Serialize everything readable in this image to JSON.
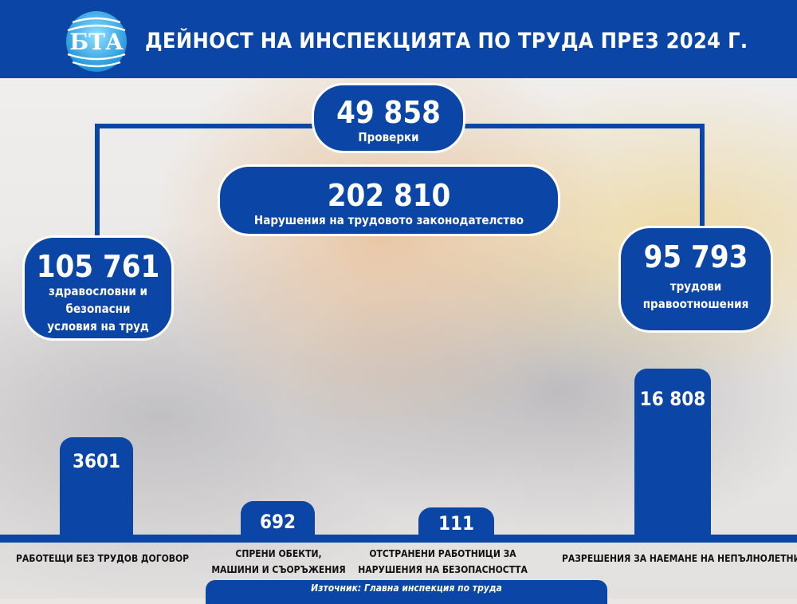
{
  "header": {
    "logo_text": "БТА",
    "title": "ДЕЙНОСТ НА ИНСПЕКЦИЯТА ПО ТРУДА ПРЕЗ 2024 Г."
  },
  "inspections": {
    "value": "49 858",
    "label": "Проверки"
  },
  "violations": {
    "value": "202 810",
    "label": "Нарушения на трудовото законодателство"
  },
  "health_safety": {
    "value": "105 761",
    "label_line1": "здравословни и",
    "label_line2": "безопасни",
    "label_line3": "условия на труд"
  },
  "labor_relations": {
    "value": "95 793",
    "label_line1": "трудови",
    "label_line2": "правоотношения"
  },
  "bars": [
    {
      "value": "3601",
      "label_line1": "РАБОТЕЩИ БЕЗ ТРУДОВ ДОГОВОР",
      "label_line2": ""
    },
    {
      "value": "692",
      "label_line1": "СПРЕНИ ОБЕКТИ,",
      "label_line2": "МАШИНИ И СЪОРЪЖЕНИЯ"
    },
    {
      "value": "111",
      "label_line1": "ОТСТРАНЕНИ РАБОТНИЦИ ЗА",
      "label_line2": "НАРУШЕНИЯ НА БЕЗОПАСНОСТТА"
    },
    {
      "value": "16 808",
      "label_line1": "РАЗРЕШЕНИЯ ЗА НАЕМАНЕ НА НЕПЪЛНОЛЕТНИ",
      "label_line2": ""
    }
  ],
  "source": "Източник: Главна инспекция по труда",
  "colors": {
    "brand_blue": "#0b46a6"
  }
}
